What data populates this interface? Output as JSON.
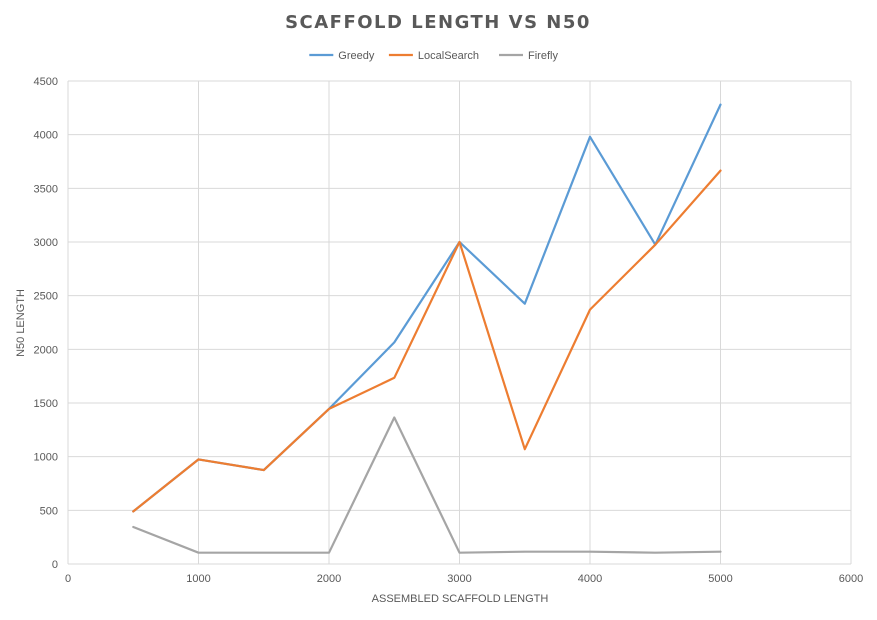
{
  "chart_data": {
    "type": "line",
    "title": "SCAFFOLD LENGTH VS N50",
    "xlabel": "ASSEMBLED SCAFFOLD LENGTH",
    "ylabel": "N50 LENGTH",
    "xlim": [
      0,
      6000
    ],
    "ylim": [
      0,
      4500
    ],
    "x_ticks": [
      "0",
      "1000",
      "2000",
      "3000",
      "4000",
      "5000",
      "6000"
    ],
    "y_ticks": [
      "0",
      "500",
      "1000",
      "1500",
      "2000",
      "2500",
      "3000",
      "3500",
      "4000",
      "4500"
    ],
    "grid": "on",
    "legend_position": "top",
    "x": [
      500,
      1000,
      1500,
      2000,
      2500,
      3000,
      3500,
      4000,
      4500,
      5000
    ],
    "series": [
      {
        "name": "Greedy",
        "color": "#5b9bd5",
        "values": [
          490,
          975,
          875,
          1445,
          2065,
          3000,
          2425,
          3980,
          2975,
          4280
        ]
      },
      {
        "name": "LocalSearch",
        "color": "#ed7d31",
        "values": [
          490,
          975,
          875,
          1445,
          1735,
          3000,
          1070,
          2370,
          2975,
          3665
        ]
      },
      {
        "name": "Firefly",
        "color": "#a5a5a5",
        "values": [
          345,
          105,
          105,
          105,
          1365,
          105,
          115,
          115,
          105,
          115
        ]
      }
    ]
  }
}
